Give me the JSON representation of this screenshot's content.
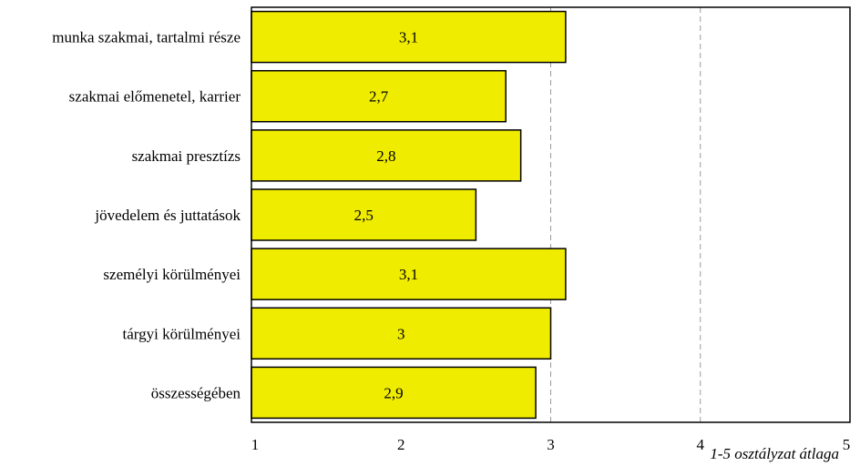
{
  "chart_data": {
    "type": "bar",
    "orientation": "horizontal",
    "categories": [
      "munka szakmai, tartalmi része",
      "szakmai előmenetel, karrier",
      "szakmai presztízs",
      "jövedelem és juttatások",
      "személyi körülményei",
      "tárgyi körülményei",
      "összességében"
    ],
    "values": [
      3.1,
      2.7,
      2.8,
      2.5,
      3.1,
      3,
      2.9
    ],
    "value_labels": [
      "3,1",
      "2,7",
      "2,8",
      "2,5",
      "3,1",
      "3",
      "2,9"
    ],
    "xlim": [
      1,
      5
    ],
    "xticks": [
      1,
      2,
      3,
      4,
      5
    ],
    "xtick_labels": [
      "1",
      "2",
      "3",
      "4",
      "5"
    ],
    "xlabel": "1-5 osztályzat átlaga",
    "ylabel": "",
    "title": "",
    "bar_color": "#f0ec00",
    "gridlines": "vertical dashed at 3 and 4",
    "legend": "none"
  }
}
